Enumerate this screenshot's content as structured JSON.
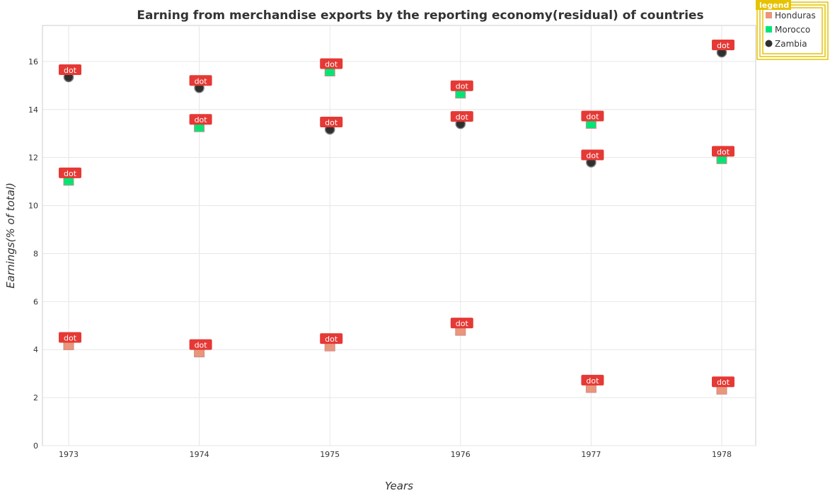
{
  "chart_data": {
    "type": "scatter",
    "title": "Earning from merchandise exports by the reporting economy(residual) of countries",
    "xlabel": "Years",
    "ylabel": "Earnings(% of total)",
    "categories": [
      "1973",
      "1974",
      "1975",
      "1976",
      "1977",
      "1978"
    ],
    "ylim": [
      0,
      17.5
    ],
    "yticks": [
      "0",
      "2",
      "4",
      "6",
      "8",
      "10",
      "12",
      "14",
      "16"
    ],
    "ytick_values": [
      0,
      2,
      4,
      6,
      8,
      10,
      12,
      14,
      16
    ],
    "grid": true,
    "legend_title": "legend",
    "legend_position": "top-right",
    "annotation_text": "dot",
    "series": [
      {
        "name": "Honduras",
        "color": "#e9967a",
        "marker": "square",
        "values": [
          4.2,
          3.9,
          4.15,
          4.8,
          2.42,
          2.35
        ]
      },
      {
        "name": "Morocco",
        "color": "#00e676",
        "marker": "square",
        "values": [
          11.05,
          13.28,
          15.6,
          14.68,
          13.42,
          11.95
        ]
      },
      {
        "name": "Zambia",
        "color": "#2f2f2f",
        "marker": "circle",
        "values": [
          15.35,
          14.9,
          13.17,
          13.4,
          11.8,
          16.38
        ]
      }
    ]
  }
}
